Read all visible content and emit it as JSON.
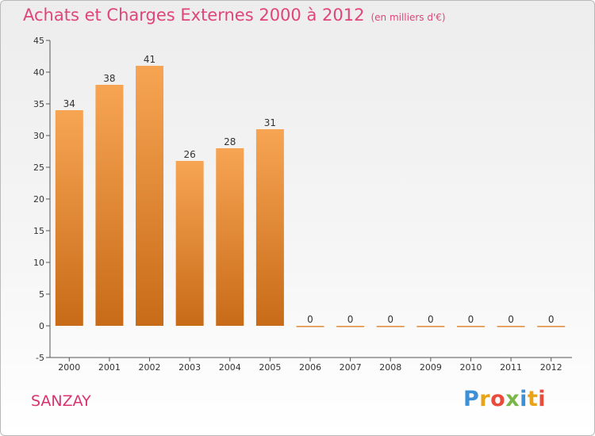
{
  "title": "Achats et Charges Externes 2000 à 2012",
  "subtitle": "(en milliers d'€)",
  "place": "SANZAY",
  "logo": {
    "letters": [
      "P",
      "r",
      "o",
      "x",
      "i",
      "t",
      "i"
    ],
    "colors": [
      "#3d8fd6",
      "#e8a317",
      "#e94b3c",
      "#7ab648",
      "#3d8fd6",
      "#e8a317",
      "#e94b3c"
    ]
  },
  "colors": {
    "bar_top": "#f7a553",
    "bar_bottom": "#c86b18",
    "title": "#e0457a",
    "place": "#d8336e"
  },
  "chart_data": {
    "type": "bar",
    "categories": [
      "2000",
      "2001",
      "2002",
      "2003",
      "2004",
      "2005",
      "2006",
      "2007",
      "2008",
      "2009",
      "2010",
      "2011",
      "2012"
    ],
    "values": [
      34,
      38,
      41,
      26,
      28,
      31,
      0,
      0,
      0,
      0,
      0,
      0,
      0
    ],
    "title": "Achats et Charges Externes 2000 à 2012",
    "ylim": [
      -5,
      45
    ],
    "yticks": [
      -5,
      0,
      5,
      10,
      15,
      20,
      25,
      30,
      35,
      40,
      45
    ],
    "grid": false,
    "legend": "none"
  }
}
